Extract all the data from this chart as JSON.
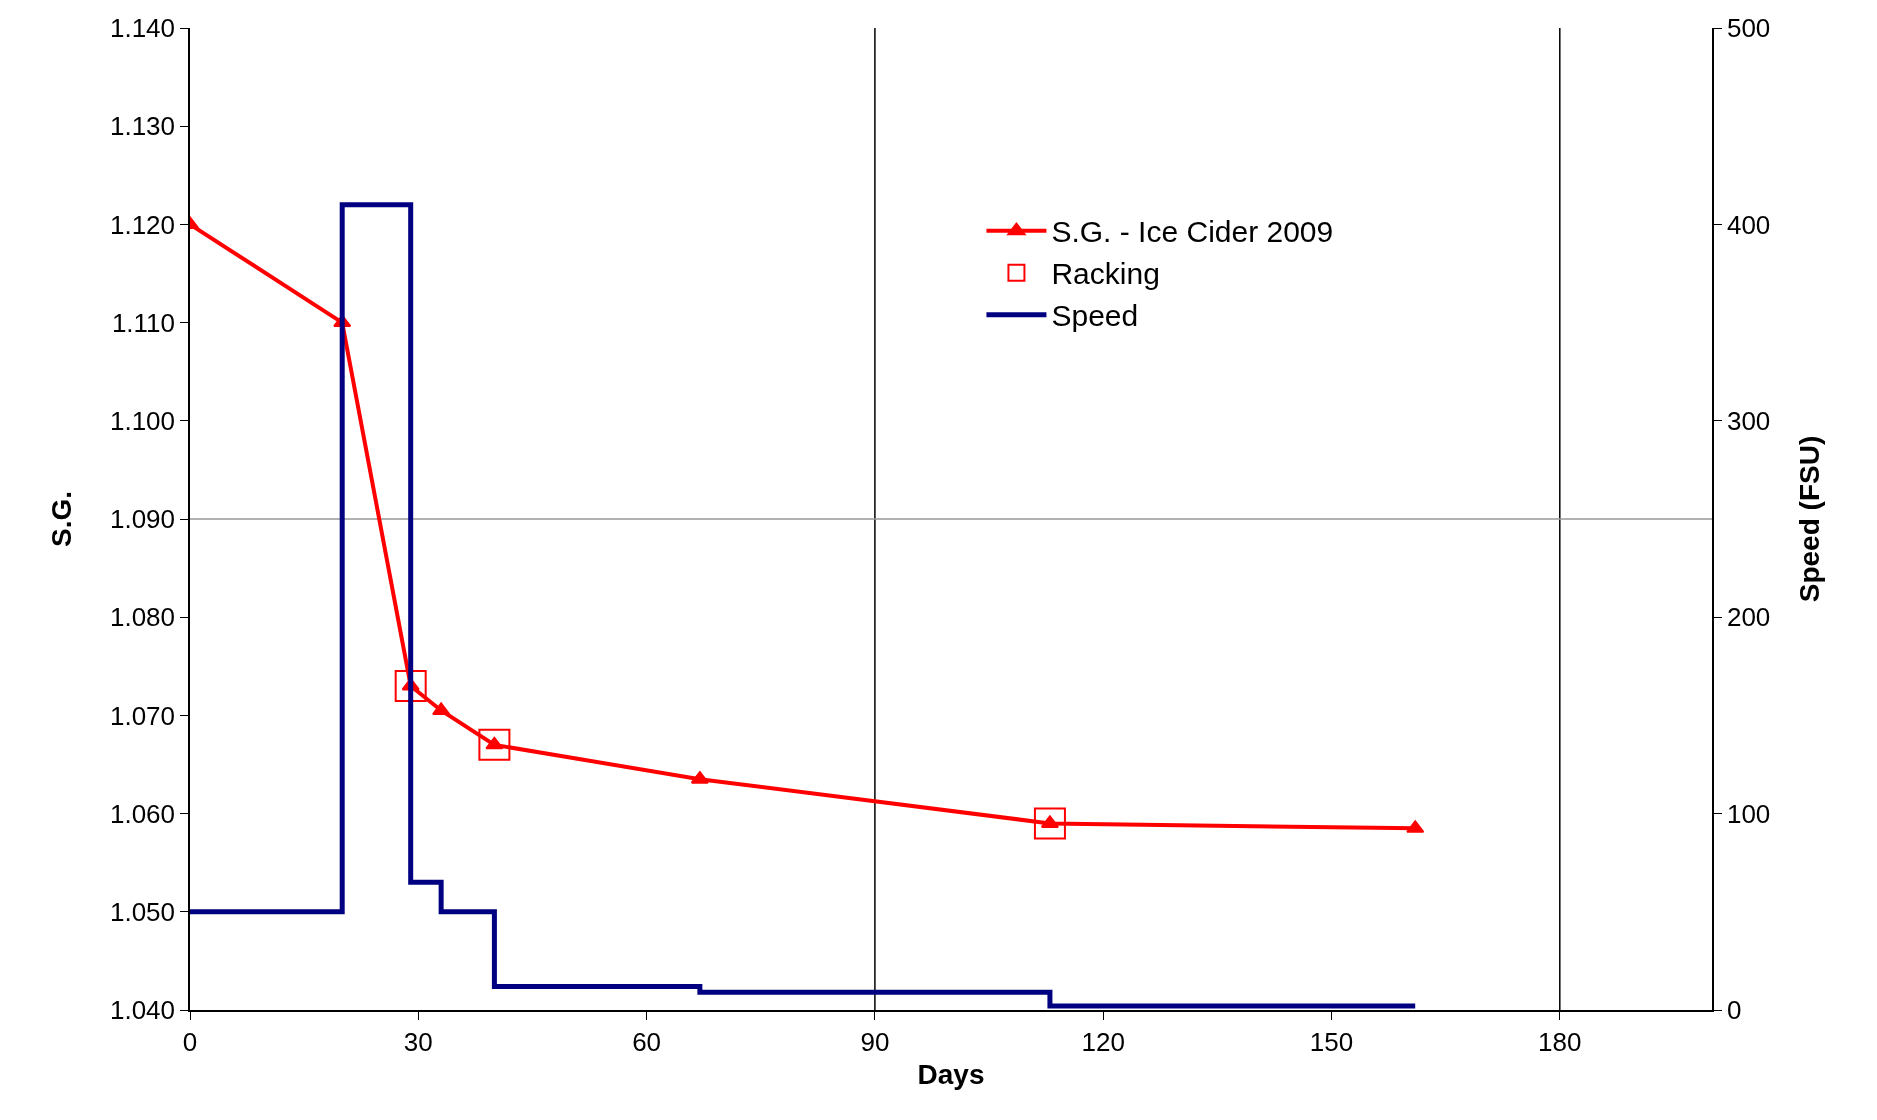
{
  "chart_data": {
    "type": "line",
    "xlabel": "Days",
    "ylabel": "S.G.",
    "y2label": "Speed (FSU)",
    "xlim": [
      0,
      200
    ],
    "xticks": [
      0,
      30,
      60,
      90,
      120,
      150,
      180
    ],
    "ylim": [
      1.04,
      1.14
    ],
    "yticks": [
      {
        "value": 1.04,
        "label": "1.040"
      },
      {
        "value": 1.05,
        "label": "1.050"
      },
      {
        "value": 1.06,
        "label": "1.060"
      },
      {
        "value": 1.07,
        "label": "1.070"
      },
      {
        "value": 1.08,
        "label": "1.080"
      },
      {
        "value": 1.09,
        "label": "1.090"
      },
      {
        "value": 1.1,
        "label": "1.100"
      },
      {
        "value": 1.11,
        "label": "1.110"
      },
      {
        "value": 1.12,
        "label": "1.120"
      },
      {
        "value": 1.13,
        "label": "1.130"
      },
      {
        "value": 1.14,
        "label": "1.140"
      }
    ],
    "y2lim": [
      0,
      500
    ],
    "y2ticks": [
      0,
      100,
      200,
      300,
      400,
      500
    ],
    "legend": "top right",
    "grid": false,
    "ref_lines": [
      {
        "axis": "x",
        "value": 90,
        "color": "#000000"
      },
      {
        "axis": "x",
        "value": 180,
        "color": "#000000"
      },
      {
        "axis": "y",
        "value": 1.09,
        "color": "#999999"
      }
    ],
    "series": [
      {
        "name": "S.G. - Ice Cider 2009",
        "marker": "triangle",
        "color": "#ff0000",
        "x": [
          0,
          20,
          29,
          33,
          40,
          67,
          113,
          161
        ],
        "values": [
          1.12,
          1.11,
          1.073,
          1.0705,
          1.067,
          1.0635,
          1.059,
          1.0585
        ]
      },
      {
        "name": "Racking",
        "type": "scatter",
        "marker": "square",
        "color": "#ff0000",
        "x": [
          29,
          40,
          113
        ],
        "values": [
          1.073,
          1.067,
          1.059
        ]
      },
      {
        "name": "Speed",
        "type": "step",
        "marker": "none",
        "axis": "y2",
        "color": "#000080",
        "x": [
          0,
          20,
          29,
          33,
          40,
          67,
          113,
          161
        ],
        "values": [
          50,
          410,
          65,
          50,
          12,
          9,
          2,
          2
        ]
      }
    ]
  }
}
